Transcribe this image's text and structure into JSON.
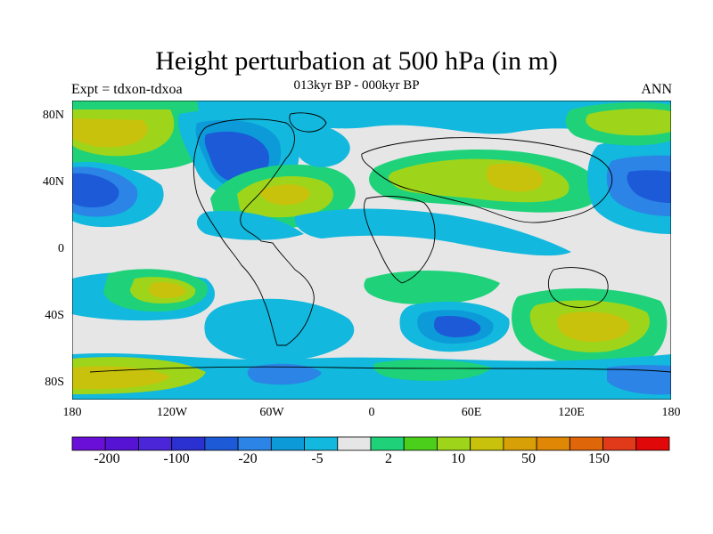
{
  "title": "Height perturbation at 500 hPa (in m)",
  "subtitle": "013kyr BP - 000kyr BP",
  "left_label": "Expt = tdxon-tdxoa",
  "right_label": "ANN",
  "lat_ticks": [
    "80N",
    "40N",
    "0",
    "40S",
    "80S"
  ],
  "lon_ticks": [
    "180",
    "120W",
    "60W",
    "0",
    "60E",
    "120E",
    "180"
  ],
  "colorbar": {
    "colors": [
      "#6a0fd8",
      "#5713d4",
      "#4a26d8",
      "#2b30d0",
      "#1c5ad8",
      "#2b84e6",
      "#0d9ad9",
      "#12b8dd",
      "#e6e6e6",
      "#1fd27a",
      "#4ccf1a",
      "#9ed51a",
      "#c8c20c",
      "#d8a007",
      "#e08806",
      "#e0660a",
      "#e03a1a",
      "#e00808"
    ],
    "labels": [
      "-200",
      "-100",
      "-20",
      "-5",
      "2",
      "10",
      "50",
      "150"
    ]
  },
  "map_colors": {
    "background": "#e6e6e6",
    "blue_dark": "#1c5ad8",
    "blue_mid": "#2b84e6",
    "blue_light": "#0d9ad9",
    "cyan": "#12b8dd",
    "green": "#1fd27a",
    "green2": "#4ccf1a",
    "yellow_green": "#9ed51a",
    "yellow": "#c8c20c",
    "orange": "#d8a007"
  }
}
